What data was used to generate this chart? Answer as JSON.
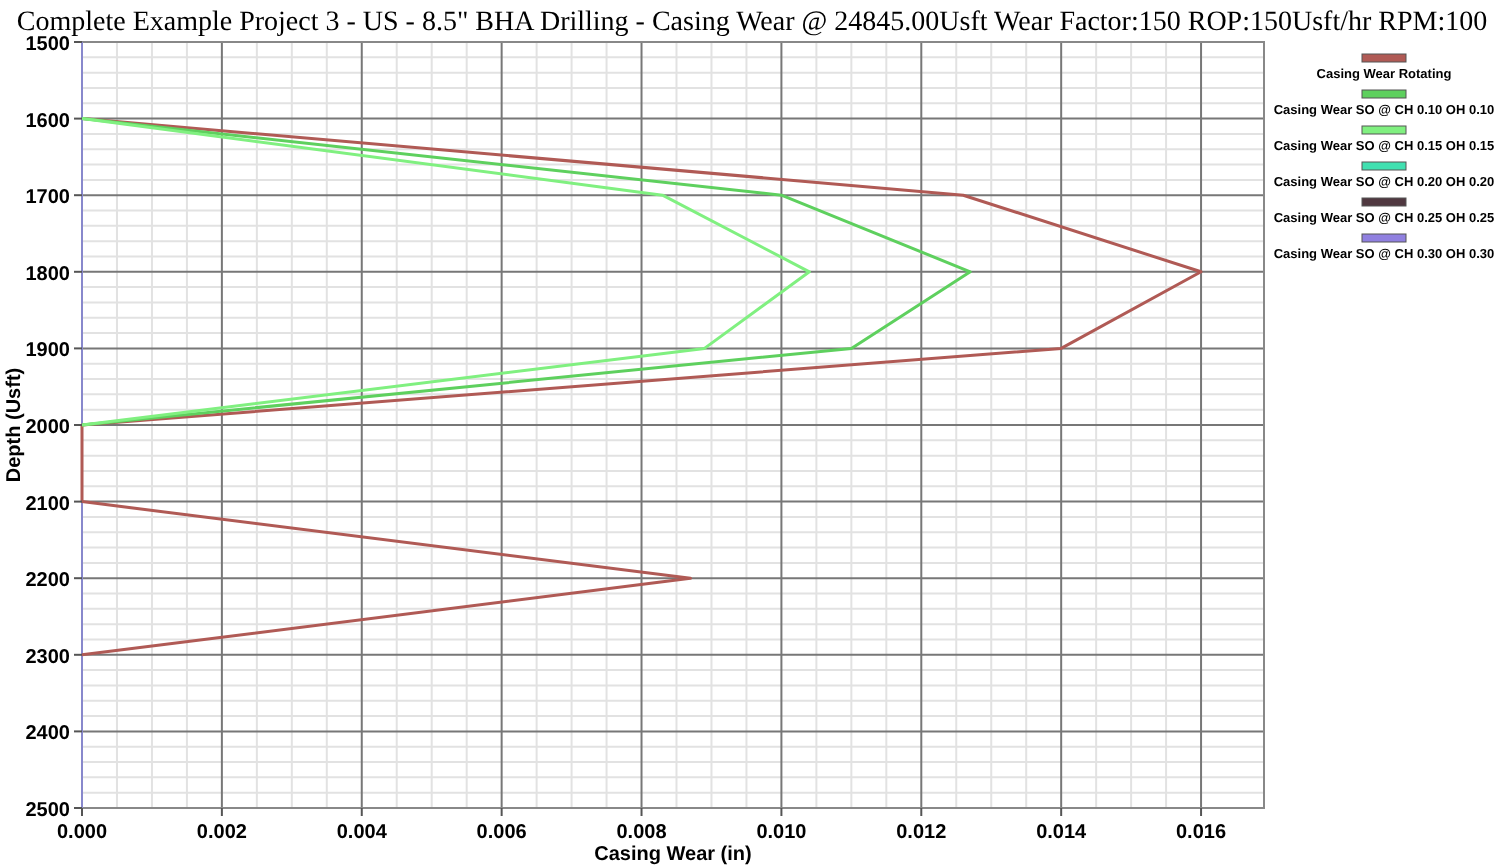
{
  "chart_data": {
    "type": "line",
    "title": "Complete Example Project 3 - US - 8.5\" BHA Drilling - Casing Wear @ 24845.00Usft Wear Factor:150 ROP:150Usft/hr RPM:100",
    "xlabel": "Casing Wear (in)",
    "ylabel": "Depth (Usft)",
    "orientation": "horizontal",
    "x": [
      1600,
      1700,
      1800,
      1900,
      2000,
      2100,
      2200,
      2300
    ],
    "series": [
      {
        "name": "Casing Wear Rotating",
        "color": "#b05a55",
        "values": [
          0,
          0.0126,
          0.016,
          0.014,
          0,
          0,
          0.0087,
          0
        ]
      },
      {
        "name": "Casing Wear SO @ CH 0.10 OH 0.10",
        "color": "#5ed05e",
        "values": [
          0,
          0.01,
          0.0127,
          0.011,
          0,
          null,
          null,
          null
        ]
      },
      {
        "name": "Casing Wear SO @ CH 0.15 OH 0.15",
        "color": "#80f080",
        "values": [
          0,
          0.0083,
          0.0104,
          0.0089,
          0,
          null,
          null,
          null
        ]
      },
      {
        "name": "Casing Wear SO @ CH 0.20 OH 0.20",
        "color": "#40e0b0",
        "values": [
          null,
          null,
          null,
          null,
          null,
          null,
          null,
          null
        ]
      },
      {
        "name": "Casing Wear SO @ CH 0.25 OH 0.25",
        "color": "#503840",
        "values": [
          null,
          null,
          null,
          null,
          null,
          null,
          null,
          null
        ]
      },
      {
        "name": "Casing Wear SO @ CH 0.30 OH 0.30",
        "color": "#9080e0",
        "values": [
          null,
          null,
          null,
          null,
          null,
          null,
          null,
          null
        ]
      }
    ],
    "xlim": [
      0,
      0.0169
    ],
    "xticks": [
      {
        "value": 0,
        "label": "0.000"
      },
      {
        "value": 0.002,
        "label": "0.002"
      },
      {
        "value": 0.004,
        "label": "0.004"
      },
      {
        "value": 0.006,
        "label": "0.006"
      },
      {
        "value": 0.008,
        "label": "0.008"
      },
      {
        "value": 0.01,
        "label": "0.010"
      },
      {
        "value": 0.012,
        "label": "0.012"
      },
      {
        "value": 0.014,
        "label": "0.014"
      },
      {
        "value": 0.016,
        "label": "0.016"
      }
    ],
    "ylim": [
      2500,
      1500
    ],
    "yticks": [
      1500,
      1600,
      1700,
      1800,
      1900,
      2000,
      2100,
      2200,
      2300,
      2400,
      2500
    ],
    "grid": true,
    "legend": "right",
    "marker": "none",
    "line_style": "solid"
  }
}
